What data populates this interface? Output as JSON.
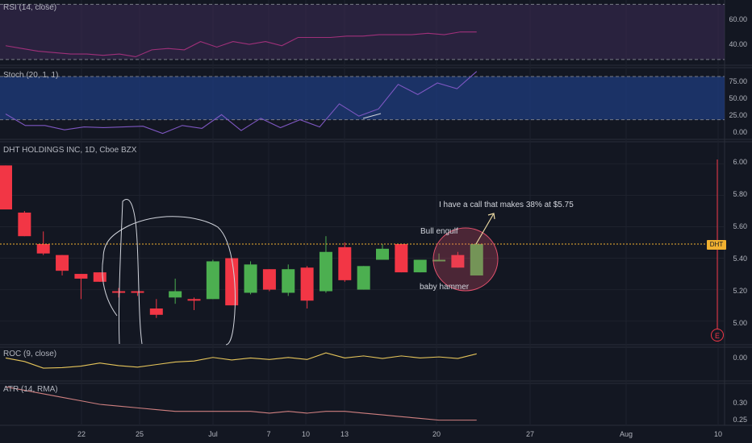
{
  "chart_data": {
    "type": "candlestick",
    "symbol_label": "DHT HOLDINGS INC, 1D, Cboe BZX",
    "ticker_badge": "DHT",
    "current_price": 5.49,
    "x_ticks": [
      "22",
      "25",
      "Jul",
      "7",
      "10",
      "13",
      "20",
      "27",
      "Aug",
      "10"
    ],
    "price_axis": {
      "ticks": [
        "6.00",
        "5.80",
        "5.60",
        "5.40",
        "5.20",
        "5.00"
      ],
      "range": [
        4.87,
        6.12
      ]
    },
    "candles": [
      {
        "o": 5.99,
        "h": 5.99,
        "l": 5.71,
        "c": 5.71
      },
      {
        "o": 5.69,
        "h": 5.7,
        "l": 5.54,
        "c": 5.54
      },
      {
        "o": 5.49,
        "h": 5.57,
        "l": 5.42,
        "c": 5.43
      },
      {
        "o": 5.42,
        "h": 5.42,
        "l": 5.29,
        "c": 5.32
      },
      {
        "o": 5.3,
        "h": 5.3,
        "l": 5.14,
        "c": 5.27
      },
      {
        "o": 5.31,
        "h": 5.31,
        "l": 5.25,
        "c": 5.25
      },
      {
        "o": 5.19,
        "h": 5.21,
        "l": 5.15,
        "c": 5.18
      },
      {
        "o": 5.19,
        "h": 5.19,
        "l": 5.16,
        "c": 5.18
      },
      {
        "o": 5.08,
        "h": 5.14,
        "l": 5.02,
        "c": 5.04
      },
      {
        "o": 5.15,
        "h": 5.27,
        "l": 5.11,
        "c": 5.19
      },
      {
        "o": 5.14,
        "h": 5.15,
        "l": 5.07,
        "c": 5.13
      },
      {
        "o": 5.14,
        "h": 5.39,
        "l": 5.14,
        "c": 5.38
      },
      {
        "o": 5.4,
        "h": 5.4,
        "l": 5.1,
        "c": 5.1
      },
      {
        "o": 5.18,
        "h": 5.38,
        "l": 5.17,
        "c": 5.36
      },
      {
        "o": 5.33,
        "h": 5.33,
        "l": 5.19,
        "c": 5.2
      },
      {
        "o": 5.18,
        "h": 5.36,
        "l": 5.16,
        "c": 5.33
      },
      {
        "o": 5.34,
        "h": 5.35,
        "l": 5.08,
        "c": 5.13
      },
      {
        "o": 5.19,
        "h": 5.54,
        "l": 5.18,
        "c": 5.44
      },
      {
        "o": 5.47,
        "h": 5.5,
        "l": 5.25,
        "c": 5.26
      },
      {
        "o": 5.2,
        "h": 5.35,
        "l": 5.2,
        "c": 5.35
      },
      {
        "o": 5.39,
        "h": 5.49,
        "l": 5.39,
        "c": 5.46
      },
      {
        "o": 5.49,
        "h": 5.49,
        "l": 5.31,
        "c": 5.31
      },
      {
        "o": 5.31,
        "h": 5.39,
        "l": 5.31,
        "c": 5.39
      },
      {
        "o": 5.39,
        "h": 5.43,
        "l": 5.38,
        "c": 5.39
      },
      {
        "o": 5.42,
        "h": 5.44,
        "l": 5.34,
        "c": 5.34
      },
      {
        "o": 5.29,
        "h": 5.5,
        "l": 5.29,
        "c": 5.49
      }
    ],
    "annotations": {
      "call_note": "I have a call that makes 38% at $5.75",
      "bull_engulf": "Bull engulf",
      "baby_hammer": "baby hammer"
    },
    "indicators": {
      "rsi": {
        "label": "RSI (14, close)",
        "ticks": [
          "60.00",
          "40.00"
        ],
        "range": [
          27,
          72
        ],
        "band": [
          30,
          70
        ],
        "values": [
          40,
          38,
          36,
          35,
          34,
          34,
          33,
          34,
          32,
          37,
          38,
          37,
          43,
          39,
          43,
          41,
          43,
          40,
          46,
          46,
          46,
          47,
          47,
          48,
          48,
          48,
          49,
          48,
          50,
          50
        ]
      },
      "stoch": {
        "label": "Stoch (20, 1, 1)",
        "ticks": [
          "75.00",
          "50.00",
          "25.00",
          "0.00"
        ],
        "range": [
          -5,
          90
        ],
        "band": [
          20,
          80
        ],
        "values": [
          28,
          12,
          12,
          6,
          10,
          9,
          10,
          11,
          1,
          12,
          8,
          27,
          5,
          22,
          9,
          20,
          10,
          42,
          25,
          35,
          69,
          55,
          71,
          63,
          87
        ]
      },
      "roc": {
        "label": "ROC (9, close)",
        "ticks": [
          "0.00"
        ],
        "range": [
          -4,
          2
        ],
        "values": [
          0.2,
          -0.5,
          -1.8,
          -1.7,
          -1.4,
          -0.8,
          -1.3,
          -1.6,
          -1.1,
          -0.6,
          -0.4,
          0.3,
          -0.2,
          0.2,
          -0.1,
          0.3,
          -0.1,
          1.2,
          0.2,
          0.6,
          0.1,
          0.6,
          0.2,
          0.4,
          0.1,
          1.0
        ]
      },
      "atr": {
        "label": "ATR (14, RMA)",
        "ticks": [
          "0.30",
          "0.25"
        ],
        "range": [
          0.235,
          0.345
        ],
        "values": [
          0.34,
          0.33,
          0.32,
          0.31,
          0.3,
          0.29,
          0.285,
          0.28,
          0.275,
          0.27,
          0.27,
          0.27,
          0.27,
          0.27,
          0.265,
          0.27,
          0.265,
          0.27,
          0.27,
          0.265,
          0.26,
          0.255,
          0.25,
          0.245,
          0.245,
          0.245
        ]
      }
    }
  },
  "colors": {
    "up": "#4caf50",
    "down": "#f23645",
    "background": "#131722",
    "rsi_band": "#3c2b55",
    "rsi_line": "#a0307a",
    "stoch_band": "#1e3a78",
    "stoch_line": "#7e57c2",
    "roc_line": "#e6c55a",
    "atr_line": "#d08080",
    "price_line": "#f0b030",
    "drawing": "#d1d4dc",
    "highlight": "#e0506c"
  }
}
